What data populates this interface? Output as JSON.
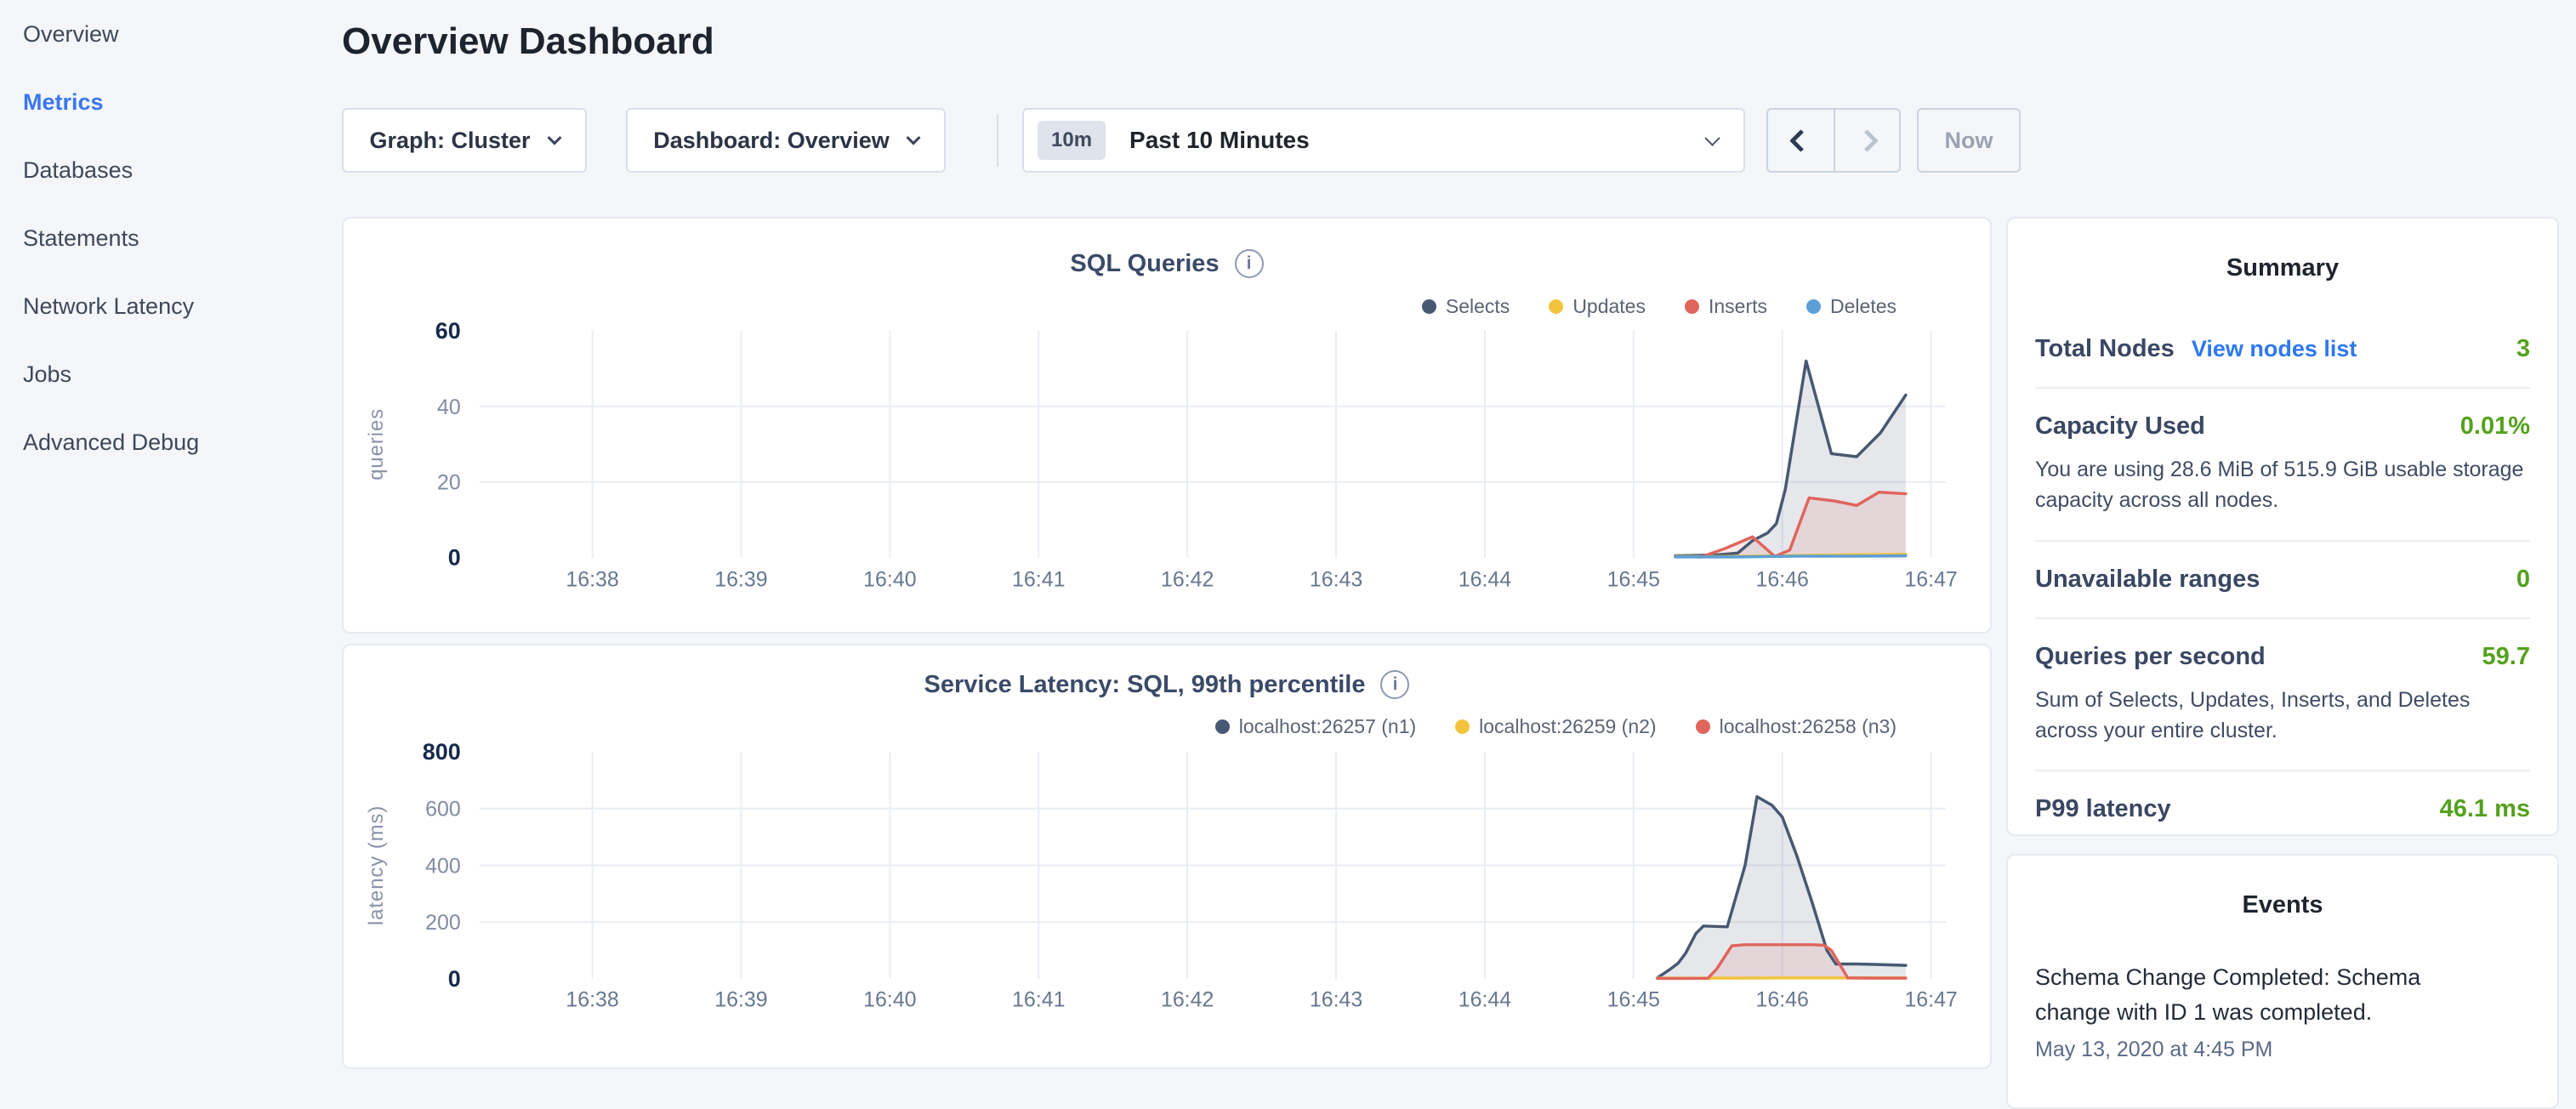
{
  "sidebar": {
    "items": [
      {
        "label": "Overview",
        "active": false
      },
      {
        "label": "Metrics",
        "active": true
      },
      {
        "label": "Databases",
        "active": false
      },
      {
        "label": "Statements",
        "active": false
      },
      {
        "label": "Network Latency",
        "active": false
      },
      {
        "label": "Jobs",
        "active": false
      },
      {
        "label": "Advanced Debug",
        "active": false
      }
    ]
  },
  "header": {
    "title": "Overview Dashboard"
  },
  "toolbar": {
    "graph_dropdown": "Graph: Cluster",
    "dashboard_dropdown": "Dashboard: Overview",
    "time_window_badge": "10m",
    "time_window_label": "Past 10 Minutes",
    "now_label": "Now"
  },
  "summary": {
    "title": "Summary",
    "rows": [
      {
        "label": "Total Nodes",
        "link": "View nodes list",
        "value": "3"
      },
      {
        "label": "Capacity Used",
        "value": "0.01%",
        "desc": "You are using 28.6 MiB of 515.9 GiB usable storage capacity across all nodes."
      },
      {
        "label": "Unavailable ranges",
        "value": "0"
      },
      {
        "label": "Queries per second",
        "value": "59.7",
        "desc": "Sum of Selects, Updates, Inserts, and Deletes across your entire cluster."
      },
      {
        "label": "P99 latency",
        "value": "46.1 ms"
      }
    ]
  },
  "events": {
    "title": "Events",
    "items": [
      {
        "message": "Schema Change Completed: Schema change with ID 1 was completed.",
        "timestamp": "May 13, 2020 at 4:45 PM"
      }
    ]
  },
  "colors": {
    "page_background": "#f4f6fa",
    "accent_blue": "#3a77ee",
    "link_blue": "#2f78f0",
    "value_green": "#54a11e",
    "selects_navy": "#475872",
    "updates_yellow": "#f2c33d",
    "inserts_red": "#e0655d",
    "deletes_blue": "#5b9fd6"
  },
  "chart_data": [
    {
      "type": "line",
      "title": "SQL Queries",
      "ylabel": "queries",
      "xlim": [
        37.24,
        47.1
      ],
      "ylim": [
        0,
        60
      ],
      "yticks": [
        0,
        20,
        40,
        60
      ],
      "xticks": [
        {
          "m": 38,
          "label": "16:38"
        },
        {
          "m": 39,
          "label": "16:39"
        },
        {
          "m": 40,
          "label": "16:40"
        },
        {
          "m": 41,
          "label": "16:41"
        },
        {
          "m": 42,
          "label": "16:42"
        },
        {
          "m": 43,
          "label": "16:43"
        },
        {
          "m": 44,
          "label": "16:44"
        },
        {
          "m": 45,
          "label": "16:45"
        },
        {
          "m": 46,
          "label": "16:46"
        },
        {
          "m": 47,
          "label": "16:47"
        }
      ],
      "legend_position": "top-right",
      "grid": true,
      "series": [
        {
          "name": "Selects",
          "color": "#475872",
          "fill": "rgba(71,88,114,0.14)",
          "points": [
            [
              45.28,
              0.5
            ],
            [
              45.55,
              0.7
            ],
            [
              45.7,
              1.2
            ],
            [
              45.8,
              4.5
            ],
            [
              45.9,
              6.5
            ],
            [
              45.96,
              9
            ],
            [
              46.02,
              18
            ],
            [
              46.16,
              52
            ],
            [
              46.33,
              27.5
            ],
            [
              46.5,
              26.7
            ],
            [
              46.66,
              33
            ],
            [
              46.83,
              43
            ]
          ]
        },
        {
          "name": "Updates",
          "color": "#f2c33d",
          "fill": null,
          "points": [
            [
              45.28,
              0.3
            ],
            [
              45.6,
              0.3
            ],
            [
              45.95,
              0.5
            ],
            [
              46.3,
              0.7
            ],
            [
              46.83,
              0.9
            ]
          ]
        },
        {
          "name": "Inserts",
          "color": "#e0655d",
          "fill": "rgba(224,101,93,0.13)",
          "points": [
            [
              45.45,
              0.1
            ],
            [
              45.62,
              2.5
            ],
            [
              45.8,
              5.5
            ],
            [
              45.95,
              0.3
            ],
            [
              46.05,
              2
            ],
            [
              46.18,
              15.8
            ],
            [
              46.35,
              15
            ],
            [
              46.5,
              13.8
            ],
            [
              46.65,
              17.3
            ],
            [
              46.83,
              16.9
            ]
          ]
        },
        {
          "name": "Deletes",
          "color": "#5b9fd6",
          "fill": null,
          "points": [
            [
              45.28,
              0.2
            ],
            [
              45.7,
              0.2
            ],
            [
              46.1,
              0.4
            ],
            [
              46.5,
              0.4
            ],
            [
              46.83,
              0.5
            ]
          ]
        }
      ]
    },
    {
      "type": "line",
      "title": "Service Latency: SQL, 99th percentile",
      "ylabel": "latency (ms)",
      "xlim": [
        37.24,
        47.1
      ],
      "ylim": [
        0,
        800
      ],
      "yticks": [
        0,
        200,
        400,
        600,
        800
      ],
      "xticks": [
        {
          "m": 38,
          "label": "16:38"
        },
        {
          "m": 39,
          "label": "16:39"
        },
        {
          "m": 40,
          "label": "16:40"
        },
        {
          "m": 41,
          "label": "16:41"
        },
        {
          "m": 42,
          "label": "16:42"
        },
        {
          "m": 43,
          "label": "16:43"
        },
        {
          "m": 44,
          "label": "16:44"
        },
        {
          "m": 45,
          "label": "16:45"
        },
        {
          "m": 46,
          "label": "16:46"
        },
        {
          "m": 47,
          "label": "16:47"
        }
      ],
      "legend_position": "top-right",
      "grid": true,
      "series": [
        {
          "name": "localhost:26257 (n1)",
          "color": "#475872",
          "fill": "rgba(71,88,114,0.14)",
          "points": [
            [
              45.16,
              3
            ],
            [
              45.25,
              35
            ],
            [
              45.3,
              55
            ],
            [
              45.35,
              90
            ],
            [
              45.42,
              160
            ],
            [
              45.47,
              186
            ],
            [
              45.63,
              183
            ],
            [
              45.75,
              400
            ],
            [
              45.83,
              642
            ],
            [
              45.93,
              612
            ],
            [
              46.0,
              570
            ],
            [
              46.1,
              430
            ],
            [
              46.2,
              270
            ],
            [
              46.3,
              100
            ],
            [
              46.36,
              52
            ],
            [
              46.5,
              52
            ],
            [
              46.65,
              50
            ],
            [
              46.83,
              47
            ]
          ]
        },
        {
          "name": "localhost:26259 (n2)",
          "color": "#f2c33d",
          "fill": null,
          "points": [
            [
              45.16,
              2
            ],
            [
              45.5,
              2
            ],
            [
              46.0,
              3
            ],
            [
              46.45,
              3
            ],
            [
              46.83,
              3
            ]
          ]
        },
        {
          "name": "localhost:26258 (n3)",
          "color": "#e0655d",
          "fill": "rgba(224,101,93,0.13)",
          "points": [
            [
              45.16,
              1
            ],
            [
              45.5,
              1.5
            ],
            [
              45.56,
              35
            ],
            [
              45.66,
              116
            ],
            [
              45.75,
              120
            ],
            [
              46.2,
              120
            ],
            [
              46.28,
              118
            ],
            [
              46.33,
              100
            ],
            [
              46.44,
              3
            ],
            [
              46.6,
              2
            ],
            [
              46.83,
              2
            ]
          ]
        }
      ]
    }
  ]
}
